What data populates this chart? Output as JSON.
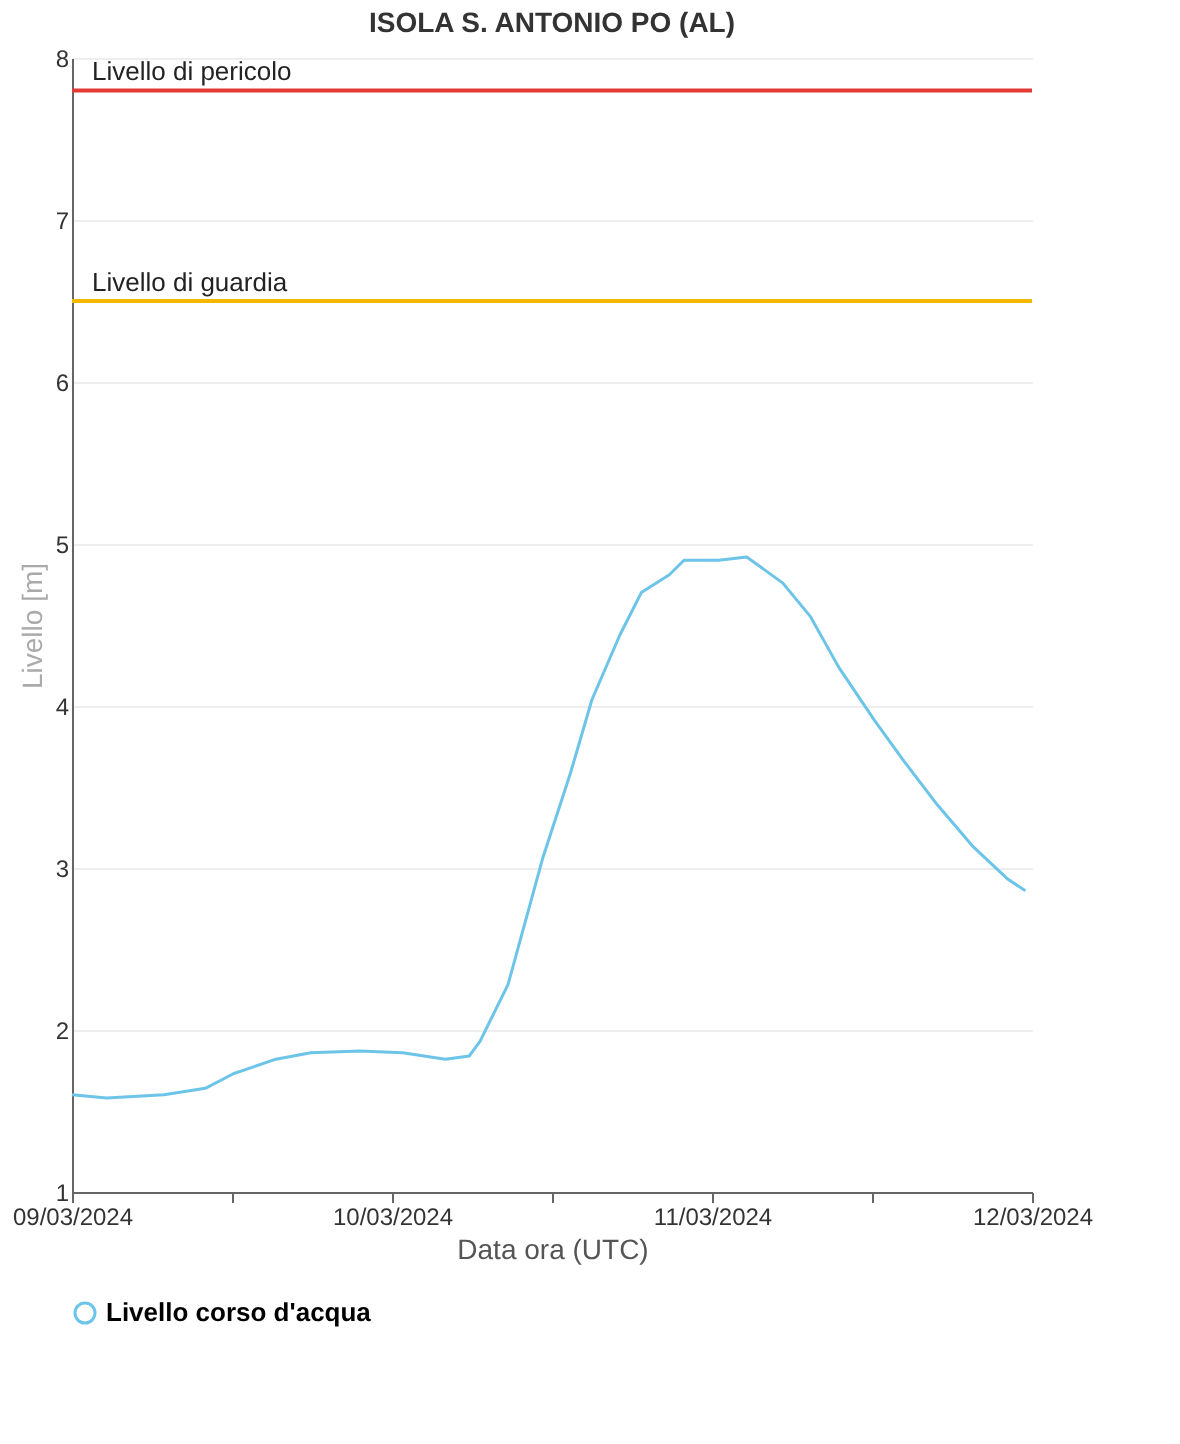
{
  "chart_data": {
    "type": "line",
    "title": "ISOLA S. ANTONIO PO (AL)",
    "xlabel": "Data ora (UTC)",
    "ylabel": "Livello [m]",
    "x": [
      "2024-03-09T00:00",
      "2024-03-09T02:36",
      "2024-03-09T06:54",
      "2024-03-09T10:00",
      "2024-03-09T12:06",
      "2024-03-09T15:18",
      "2024-03-09T17:54",
      "2024-03-09T21:36",
      "2024-03-10T00:48",
      "2024-03-10T04:00",
      "2024-03-10T05:48",
      "2024-03-10T06:36",
      "2024-03-10T08:42",
      "2024-03-10T11:18",
      "2024-03-10T13:24",
      "2024-03-10T15:00",
      "2024-03-10T17:06",
      "2024-03-10T18:42",
      "2024-03-10T20:48",
      "2024-03-10T21:54",
      "2024-03-11T00:30",
      "2024-03-11T02:36",
      "2024-03-11T05:18",
      "2024-03-11T07:24",
      "2024-03-11T09:30",
      "2024-03-11T12:12",
      "2024-03-11T14:18",
      "2024-03-11T16:54",
      "2024-03-11T19:36",
      "2024-03-11T22:12",
      "2024-03-11T23:30"
    ],
    "series": [
      {
        "name": "Livello corso d'acqua",
        "color": "#6cc4e8",
        "values": [
          1.6,
          1.58,
          1.6,
          1.64,
          1.73,
          1.82,
          1.86,
          1.87,
          1.86,
          1.82,
          1.84,
          1.93,
          2.28,
          3.06,
          3.59,
          4.04,
          4.44,
          4.7,
          4.81,
          4.9,
          4.9,
          4.92,
          4.76,
          4.55,
          4.24,
          3.91,
          3.67,
          3.39,
          3.13,
          2.93,
          2.86
        ]
      }
    ],
    "xlim": [
      "2024-03-09T00:00",
      "2024-03-12T00:00"
    ],
    "xticks": [
      {
        "value": "2024-03-09T00:00",
        "label": "09/03/2024"
      },
      {
        "value": "2024-03-09T12:00",
        "label": null
      },
      {
        "value": "2024-03-10T00:00",
        "label": "10/03/2024"
      },
      {
        "value": "2024-03-10T12:00",
        "label": null
      },
      {
        "value": "2024-03-11T00:00",
        "label": "11/03/2024"
      },
      {
        "value": "2024-03-11T12:00",
        "label": null
      },
      {
        "value": "2024-03-12T00:00",
        "label": "12/03/2024"
      }
    ],
    "ylim": [
      1,
      8
    ],
    "yticks": [
      1,
      2,
      3,
      4,
      5,
      6,
      7,
      8
    ],
    "ref_lines": [
      {
        "axis": "y",
        "value": 7.8,
        "label": "Livello di pericolo",
        "color": "#e53935"
      },
      {
        "axis": "y",
        "value": 6.5,
        "label": "Livello di guardia",
        "color": "#f5b800"
      }
    ],
    "grid": "y",
    "legend": "bottom",
    "marker": "none",
    "line_style": "solid"
  }
}
